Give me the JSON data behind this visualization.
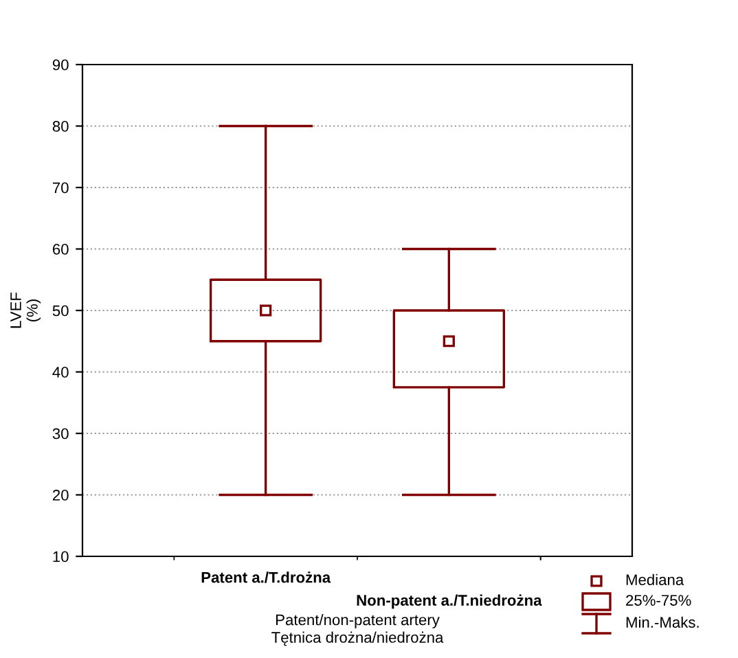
{
  "chart_data": {
    "type": "box",
    "categories": [
      "Patent a./T.drożna",
      "Non-patent a./T.niedrożna"
    ],
    "boxes": [
      {
        "low": 20,
        "q1": 45,
        "median": 50,
        "q3": 55,
        "high": 80
      },
      {
        "low": 20,
        "q1": 37.5,
        "median": 45,
        "q3": 50,
        "high": 60
      }
    ],
    "color": "#800000",
    "xlabel": "Patent/non-patent artery\nTętnica drożna/niedrożna",
    "ylabel": "LVEF\n(%)",
    "ylim": [
      10,
      90
    ],
    "yticks": [
      10,
      20,
      30,
      40,
      50,
      60,
      70,
      80,
      90
    ],
    "grid": "y",
    "annotations": [
      "Mediana",
      "25%-75%",
      "Min.-Maks."
    ]
  }
}
